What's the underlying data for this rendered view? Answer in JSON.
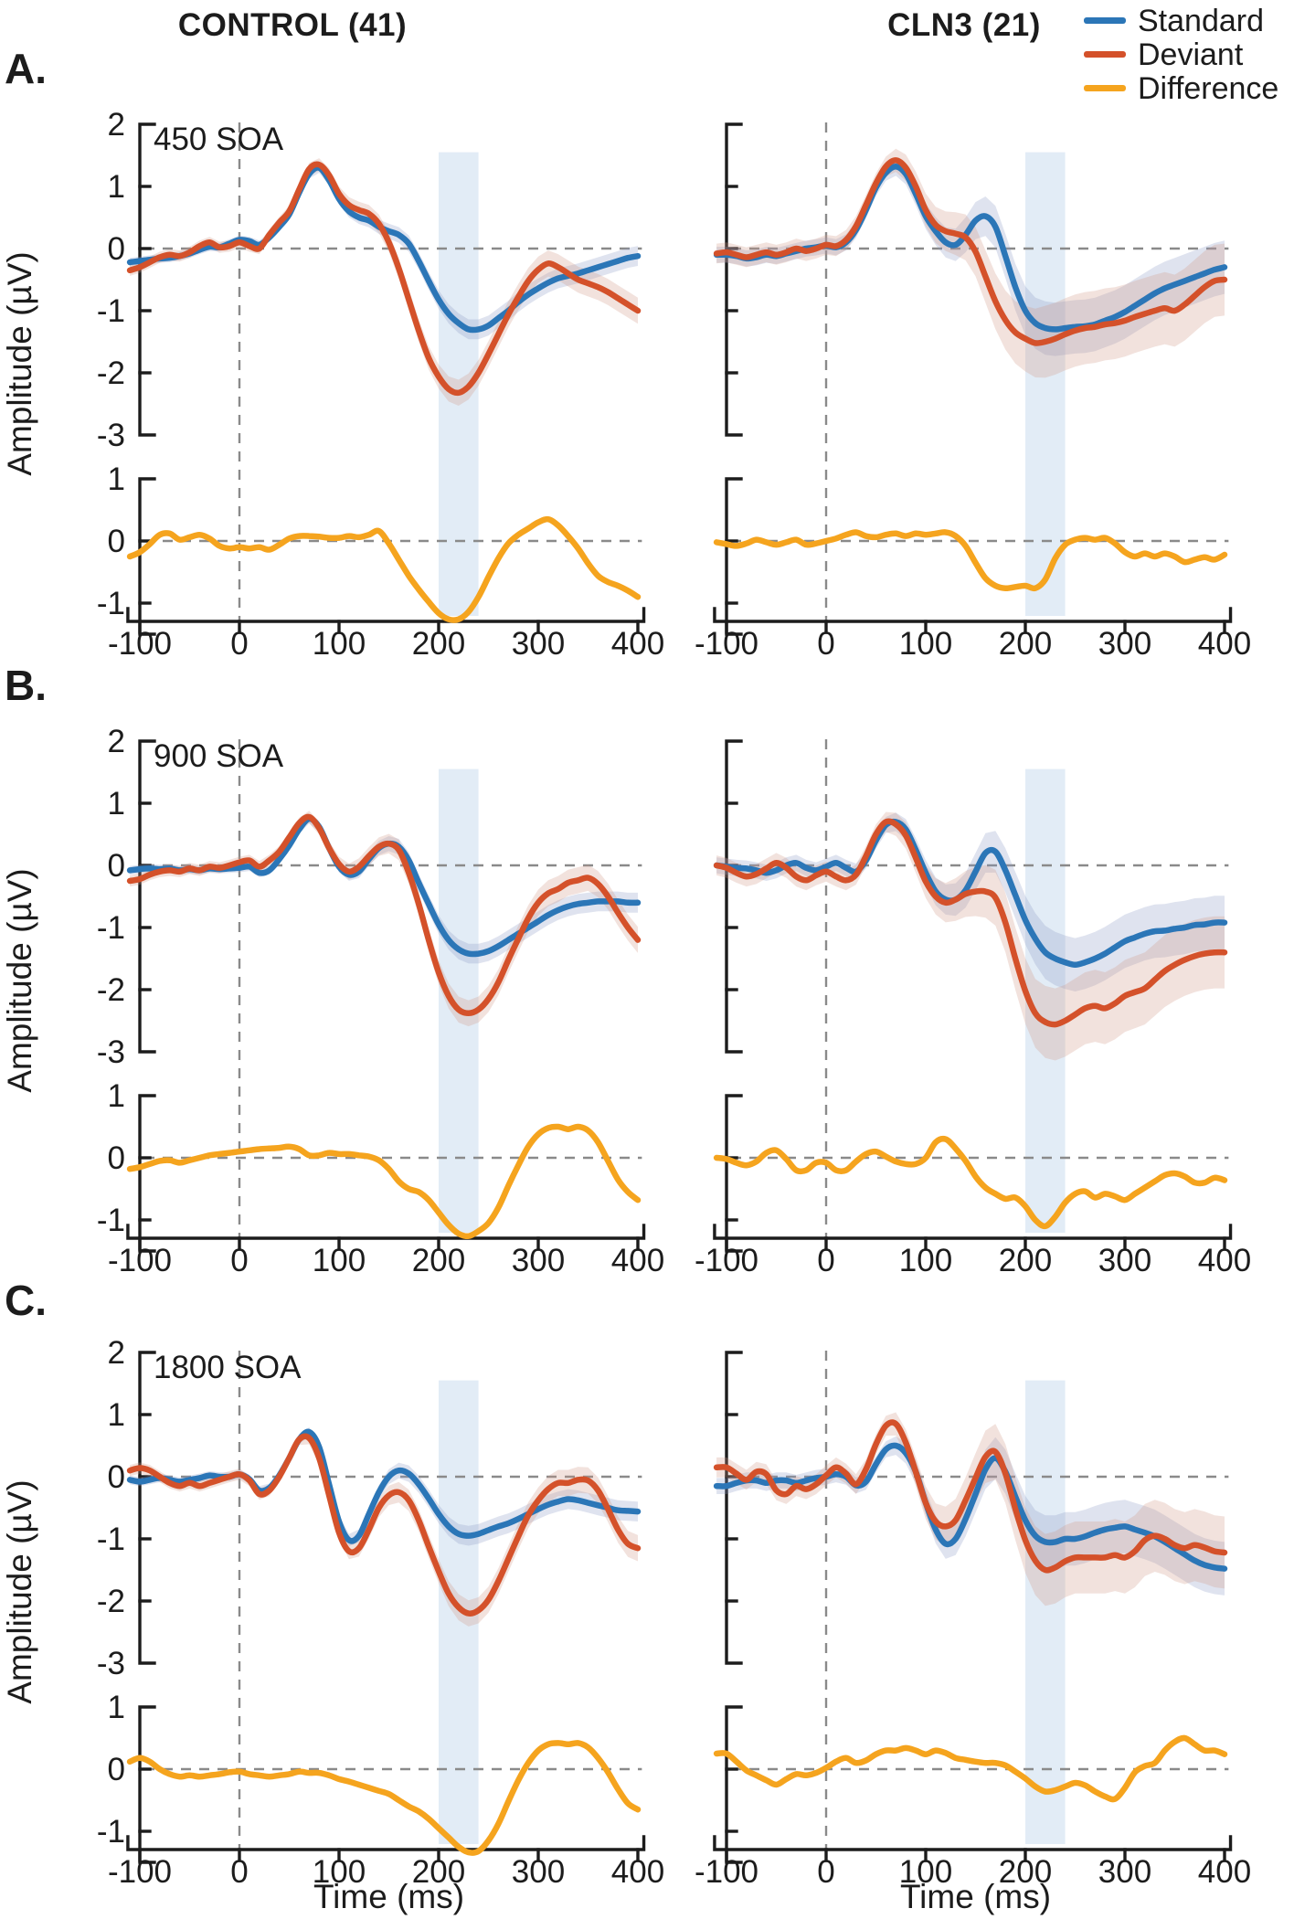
{
  "header": {
    "control_title": "CONTROL (41)",
    "cln3_title": "CLN3 (21)"
  },
  "legend": {
    "items": [
      {
        "label": "Standard",
        "color": "#2b76b7"
      },
      {
        "label": "Deviant",
        "color": "#d4512a"
      },
      {
        "label": "Difference",
        "color": "#f5a41e"
      }
    ]
  },
  "chart_data": {
    "type": "line",
    "xlabel": "Time (ms)",
    "ylabel": "Amplitude (µV)",
    "x_range_ms": [
      -110,
      400
    ],
    "x_step_ms": 10,
    "xticks": [
      -100,
      0,
      100,
      200,
      300,
      400
    ],
    "main_yticks": [
      2,
      1,
      0,
      -1,
      -2,
      -3
    ],
    "main_ylim": [
      2,
      -3
    ],
    "diff_yticks": [
      1,
      0,
      -1
    ],
    "highlight_ms": [
      200,
      240
    ],
    "grid": "dashed zero lines, dashed vertical at 0 ms",
    "legend_position": "top-right",
    "colors": {
      "standard": "#2b76b7",
      "deviant": "#d4512a",
      "difference": "#f5a41e",
      "band_standard": "#8d9cc7",
      "band_deviant": "#cf9784",
      "highlight": "#dfeaf5",
      "dashed": "#8a8a8a",
      "axis": "#1c1c1c"
    },
    "error_band": {
      "ramp_ms": [
        60,
        220
      ],
      "control": {
        "standard": {
          "base": 0.07,
          "grow": 0.09
        },
        "deviant": {
          "base": 0.09,
          "grow": 0.12
        }
      },
      "cln3": {
        "standard": {
          "base": 0.13,
          "grow": 0.3
        },
        "deviant": {
          "base": 0.16,
          "grow": 0.42
        }
      }
    },
    "rows": [
      {
        "letter": "A.",
        "soa": "450 SOA",
        "control": {
          "standard": [
            -0.22,
            -0.2,
            -0.18,
            -0.16,
            -0.15,
            -0.12,
            -0.08,
            -0.02,
            0.03,
            0.02,
            0.08,
            0.14,
            0.12,
            0.06,
            0.18,
            0.35,
            0.55,
            0.9,
            1.2,
            1.3,
            1.1,
            0.8,
            0.6,
            0.5,
            0.45,
            0.35,
            0.28,
            0.22,
            0.08,
            -0.2,
            -0.52,
            -0.82,
            -1.05,
            -1.2,
            -1.3,
            -1.3,
            -1.24,
            -1.12,
            -1.0,
            -0.86,
            -0.74,
            -0.64,
            -0.55,
            -0.48,
            -0.44,
            -0.4,
            -0.35,
            -0.3,
            -0.25,
            -0.2,
            -0.15,
            -0.12
          ],
          "deviant": [
            -0.35,
            -0.3,
            -0.22,
            -0.14,
            -0.1,
            -0.12,
            -0.06,
            0.04,
            0.1,
            0.02,
            0.04,
            0.1,
            0.04,
            0.0,
            0.22,
            0.42,
            0.6,
            0.95,
            1.28,
            1.35,
            1.18,
            0.88,
            0.7,
            0.62,
            0.56,
            0.4,
            0.1,
            -0.32,
            -0.82,
            -1.32,
            -1.76,
            -2.06,
            -2.26,
            -2.32,
            -2.22,
            -2.0,
            -1.7,
            -1.38,
            -1.06,
            -0.78,
            -0.52,
            -0.34,
            -0.24,
            -0.3,
            -0.4,
            -0.5,
            -0.56,
            -0.62,
            -0.7,
            -0.8,
            -0.9,
            -1.0
          ],
          "difference": [
            -0.25,
            -0.18,
            -0.05,
            0.1,
            0.12,
            0.02,
            0.06,
            0.1,
            0.04,
            -0.08,
            -0.12,
            -0.1,
            -0.12,
            -0.1,
            -0.14,
            -0.06,
            0.04,
            0.08,
            0.08,
            0.07,
            0.05,
            0.05,
            0.08,
            0.06,
            0.1,
            0.16,
            -0.04,
            -0.3,
            -0.56,
            -0.78,
            -0.98,
            -1.16,
            -1.26,
            -1.26,
            -1.14,
            -0.9,
            -0.58,
            -0.28,
            -0.04,
            0.1,
            0.2,
            0.3,
            0.35,
            0.25,
            0.08,
            -0.12,
            -0.36,
            -0.56,
            -0.66,
            -0.72,
            -0.8,
            -0.9
          ]
        },
        "cln3": {
          "standard": [
            -0.1,
            -0.1,
            -0.12,
            -0.16,
            -0.14,
            -0.1,
            -0.12,
            -0.08,
            -0.04,
            0.0,
            0.02,
            0.05,
            0.02,
            0.1,
            0.3,
            0.62,
            0.98,
            1.22,
            1.32,
            1.2,
            0.88,
            0.52,
            0.28,
            0.1,
            0.06,
            0.22,
            0.45,
            0.52,
            0.35,
            -0.12,
            -0.62,
            -1.0,
            -1.2,
            -1.28,
            -1.3,
            -1.28,
            -1.26,
            -1.25,
            -1.22,
            -1.16,
            -1.1,
            -1.02,
            -0.92,
            -0.82,
            -0.72,
            -0.64,
            -0.58,
            -0.52,
            -0.46,
            -0.4,
            -0.34,
            -0.3
          ],
          "deviant": [
            -0.08,
            -0.06,
            -0.1,
            -0.14,
            -0.1,
            -0.06,
            -0.1,
            -0.06,
            0.0,
            -0.04,
            0.0,
            0.06,
            0.04,
            0.14,
            0.36,
            0.7,
            1.05,
            1.32,
            1.42,
            1.3,
            1.0,
            0.62,
            0.38,
            0.28,
            0.24,
            0.18,
            -0.05,
            -0.45,
            -0.85,
            -1.15,
            -1.35,
            -1.45,
            -1.52,
            -1.5,
            -1.45,
            -1.38,
            -1.32,
            -1.28,
            -1.26,
            -1.22,
            -1.2,
            -1.16,
            -1.1,
            -1.05,
            -1.0,
            -0.96,
            -1.0,
            -0.9,
            -0.76,
            -0.62,
            -0.52,
            -0.5
          ],
          "difference": [
            -0.02,
            -0.05,
            -0.08,
            -0.04,
            0.02,
            -0.02,
            -0.06,
            -0.02,
            0.02,
            -0.06,
            -0.04,
            0.0,
            0.04,
            0.1,
            0.14,
            0.08,
            0.06,
            0.1,
            0.12,
            0.08,
            0.12,
            0.1,
            0.12,
            0.14,
            0.08,
            -0.08,
            -0.35,
            -0.6,
            -0.72,
            -0.76,
            -0.74,
            -0.72,
            -0.76,
            -0.62,
            -0.28,
            -0.06,
            0.02,
            0.05,
            0.02,
            0.05,
            -0.04,
            -0.18,
            -0.25,
            -0.2,
            -0.25,
            -0.2,
            -0.25,
            -0.34,
            -0.3,
            -0.26,
            -0.3,
            -0.22
          ]
        }
      },
      {
        "letter": "B.",
        "soa": "900 SOA",
        "control": {
          "standard": [
            -0.08,
            -0.06,
            -0.05,
            -0.06,
            -0.05,
            -0.08,
            -0.06,
            -0.08,
            -0.05,
            -0.06,
            -0.05,
            -0.04,
            -0.02,
            -0.12,
            -0.08,
            0.1,
            0.32,
            0.58,
            0.75,
            0.62,
            0.28,
            -0.02,
            -0.15,
            -0.1,
            0.1,
            0.28,
            0.35,
            0.3,
            0.08,
            -0.28,
            -0.62,
            -0.95,
            -1.2,
            -1.35,
            -1.42,
            -1.42,
            -1.38,
            -1.3,
            -1.2,
            -1.1,
            -1.0,
            -0.9,
            -0.8,
            -0.72,
            -0.66,
            -0.62,
            -0.6,
            -0.58,
            -0.58,
            -0.58,
            -0.6,
            -0.6
          ],
          "deviant": [
            -0.25,
            -0.22,
            -0.15,
            -0.1,
            -0.08,
            -0.1,
            -0.05,
            -0.08,
            -0.02,
            -0.04,
            0.0,
            0.05,
            0.08,
            -0.02,
            0.08,
            0.22,
            0.45,
            0.68,
            0.78,
            0.6,
            0.28,
            0.02,
            -0.1,
            -0.02,
            0.15,
            0.3,
            0.35,
            0.25,
            -0.12,
            -0.62,
            -1.2,
            -1.72,
            -2.1,
            -2.32,
            -2.38,
            -2.32,
            -2.15,
            -1.88,
            -1.52,
            -1.18,
            -0.85,
            -0.6,
            -0.45,
            -0.38,
            -0.28,
            -0.24,
            -0.2,
            -0.3,
            -0.5,
            -0.76,
            -1.0,
            -1.2
          ],
          "difference": [
            -0.18,
            -0.15,
            -0.1,
            -0.05,
            -0.04,
            -0.08,
            -0.04,
            0.0,
            0.04,
            0.06,
            0.08,
            0.1,
            0.12,
            0.14,
            0.15,
            0.16,
            0.18,
            0.14,
            0.04,
            0.04,
            0.08,
            0.06,
            0.06,
            0.04,
            0.02,
            -0.04,
            -0.18,
            -0.38,
            -0.5,
            -0.55,
            -0.68,
            -0.88,
            -1.08,
            -1.22,
            -1.26,
            -1.18,
            -1.05,
            -0.8,
            -0.45,
            -0.12,
            0.18,
            0.38,
            0.48,
            0.5,
            0.46,
            0.5,
            0.44,
            0.25,
            -0.05,
            -0.35,
            -0.55,
            -0.68
          ]
        },
        "cln3": {
          "standard": [
            0.0,
            -0.02,
            -0.04,
            -0.05,
            -0.08,
            -0.12,
            -0.08,
            0.0,
            0.04,
            -0.04,
            -0.08,
            -0.02,
            0.04,
            -0.04,
            -0.1,
            0.08,
            0.4,
            0.65,
            0.7,
            0.58,
            0.25,
            -0.12,
            -0.42,
            -0.55,
            -0.55,
            -0.4,
            -0.1,
            0.2,
            0.22,
            -0.08,
            -0.48,
            -0.88,
            -1.18,
            -1.4,
            -1.5,
            -1.56,
            -1.6,
            -1.56,
            -1.5,
            -1.42,
            -1.32,
            -1.22,
            -1.16,
            -1.1,
            -1.06,
            -1.05,
            -1.02,
            -1.0,
            -0.96,
            -0.95,
            -0.92,
            -0.92
          ],
          "deviant": [
            0.0,
            -0.04,
            -0.12,
            -0.18,
            -0.14,
            -0.05,
            0.04,
            -0.04,
            -0.18,
            -0.24,
            -0.16,
            -0.1,
            -0.18,
            -0.24,
            -0.15,
            0.15,
            0.5,
            0.7,
            0.66,
            0.48,
            0.12,
            -0.26,
            -0.5,
            -0.6,
            -0.55,
            -0.46,
            -0.42,
            -0.42,
            -0.52,
            -0.92,
            -1.5,
            -2.02,
            -2.38,
            -2.52,
            -2.56,
            -2.5,
            -2.4,
            -2.3,
            -2.26,
            -2.3,
            -2.22,
            -2.1,
            -2.04,
            -1.98,
            -1.84,
            -1.7,
            -1.6,
            -1.52,
            -1.46,
            -1.42,
            -1.4,
            -1.4
          ],
          "difference": [
            0.0,
            -0.02,
            -0.08,
            -0.12,
            -0.06,
            0.08,
            0.12,
            -0.02,
            -0.2,
            -0.2,
            -0.08,
            -0.08,
            -0.2,
            -0.2,
            -0.06,
            0.06,
            0.1,
            0.02,
            -0.06,
            -0.1,
            -0.1,
            0.0,
            0.25,
            0.3,
            0.15,
            -0.05,
            -0.3,
            -0.48,
            -0.58,
            -0.66,
            -0.64,
            -0.78,
            -1.0,
            -1.1,
            -0.95,
            -0.72,
            -0.58,
            -0.54,
            -0.64,
            -0.58,
            -0.62,
            -0.68,
            -0.58,
            -0.48,
            -0.38,
            -0.28,
            -0.25,
            -0.3,
            -0.4,
            -0.4,
            -0.32,
            -0.36
          ]
        }
      },
      {
        "letter": "C.",
        "soa": "1800 SOA",
        "control": {
          "standard": [
            -0.05,
            -0.08,
            -0.05,
            -0.02,
            -0.05,
            -0.08,
            -0.05,
            -0.02,
            0.02,
            0.0,
            0.0,
            0.04,
            -0.04,
            -0.22,
            -0.18,
            0.02,
            0.3,
            0.6,
            0.72,
            0.48,
            -0.12,
            -0.72,
            -1.02,
            -0.95,
            -0.6,
            -0.25,
            0.0,
            0.1,
            0.05,
            -0.12,
            -0.35,
            -0.6,
            -0.8,
            -0.92,
            -0.95,
            -0.92,
            -0.86,
            -0.8,
            -0.75,
            -0.68,
            -0.6,
            -0.52,
            -0.45,
            -0.4,
            -0.36,
            -0.38,
            -0.42,
            -0.46,
            -0.5,
            -0.54,
            -0.55,
            -0.56
          ],
          "deviant": [
            0.1,
            0.14,
            0.1,
            0.0,
            -0.1,
            -0.15,
            -0.1,
            -0.15,
            -0.1,
            -0.05,
            0.0,
            0.04,
            -0.06,
            -0.28,
            -0.22,
            0.0,
            0.3,
            0.6,
            0.62,
            0.3,
            -0.3,
            -0.9,
            -1.2,
            -1.15,
            -0.85,
            -0.5,
            -0.3,
            -0.25,
            -0.38,
            -0.7,
            -1.12,
            -1.52,
            -1.88,
            -2.1,
            -2.2,
            -2.15,
            -1.98,
            -1.68,
            -1.32,
            -0.96,
            -0.62,
            -0.38,
            -0.2,
            -0.1,
            -0.1,
            -0.05,
            -0.06,
            -0.22,
            -0.52,
            -0.85,
            -1.08,
            -1.15
          ],
          "difference": [
            0.12,
            0.18,
            0.12,
            0.0,
            -0.08,
            -0.12,
            -0.1,
            -0.12,
            -0.1,
            -0.08,
            -0.05,
            -0.04,
            -0.08,
            -0.1,
            -0.12,
            -0.1,
            -0.08,
            -0.04,
            -0.06,
            -0.06,
            -0.1,
            -0.16,
            -0.2,
            -0.25,
            -0.3,
            -0.35,
            -0.4,
            -0.5,
            -0.6,
            -0.68,
            -0.8,
            -0.95,
            -1.1,
            -1.25,
            -1.34,
            -1.32,
            -1.15,
            -0.88,
            -0.52,
            -0.18,
            0.1,
            0.3,
            0.4,
            0.42,
            0.4,
            0.42,
            0.35,
            0.18,
            -0.05,
            -0.32,
            -0.55,
            -0.65
          ]
        },
        "cln3": {
          "standard": [
            -0.15,
            -0.15,
            -0.1,
            -0.06,
            -0.06,
            -0.1,
            -0.06,
            -0.06,
            -0.1,
            -0.06,
            -0.02,
            0.0,
            0.04,
            0.0,
            -0.14,
            -0.08,
            0.2,
            0.44,
            0.5,
            0.38,
            0.08,
            -0.42,
            -0.85,
            -1.08,
            -1.0,
            -0.68,
            -0.28,
            0.12,
            0.3,
            0.08,
            -0.32,
            -0.7,
            -0.95,
            -1.05,
            -1.05,
            -1.0,
            -1.0,
            -0.96,
            -0.9,
            -0.85,
            -0.82,
            -0.8,
            -0.85,
            -0.9,
            -0.96,
            -1.05,
            -1.15,
            -1.25,
            -1.35,
            -1.42,
            -1.46,
            -1.48
          ],
          "deviant": [
            0.15,
            0.15,
            0.05,
            -0.05,
            0.08,
            0.04,
            -0.22,
            -0.28,
            -0.15,
            -0.2,
            -0.12,
            0.02,
            0.15,
            0.05,
            -0.12,
            0.12,
            0.52,
            0.82,
            0.85,
            0.55,
            0.08,
            -0.42,
            -0.72,
            -0.8,
            -0.7,
            -0.38,
            -0.02,
            0.32,
            0.4,
            0.05,
            -0.52,
            -1.02,
            -1.35,
            -1.5,
            -1.46,
            -1.36,
            -1.3,
            -1.3,
            -1.3,
            -1.3,
            -1.26,
            -1.3,
            -1.2,
            -1.02,
            -0.95,
            -1.0,
            -1.1,
            -1.15,
            -1.1,
            -1.14,
            -1.2,
            -1.22
          ],
          "difference": [
            0.25,
            0.25,
            0.12,
            -0.02,
            -0.1,
            -0.18,
            -0.25,
            -0.16,
            -0.08,
            -0.1,
            -0.06,
            0.02,
            0.12,
            0.18,
            0.1,
            0.14,
            0.24,
            0.3,
            0.3,
            0.34,
            0.3,
            0.24,
            0.3,
            0.26,
            0.18,
            0.15,
            0.12,
            0.1,
            0.1,
            0.06,
            -0.04,
            -0.15,
            -0.28,
            -0.36,
            -0.34,
            -0.28,
            -0.22,
            -0.26,
            -0.36,
            -0.44,
            -0.48,
            -0.3,
            -0.05,
            0.05,
            0.1,
            0.3,
            0.44,
            0.5,
            0.4,
            0.3,
            0.3,
            0.24
          ]
        }
      }
    ]
  }
}
